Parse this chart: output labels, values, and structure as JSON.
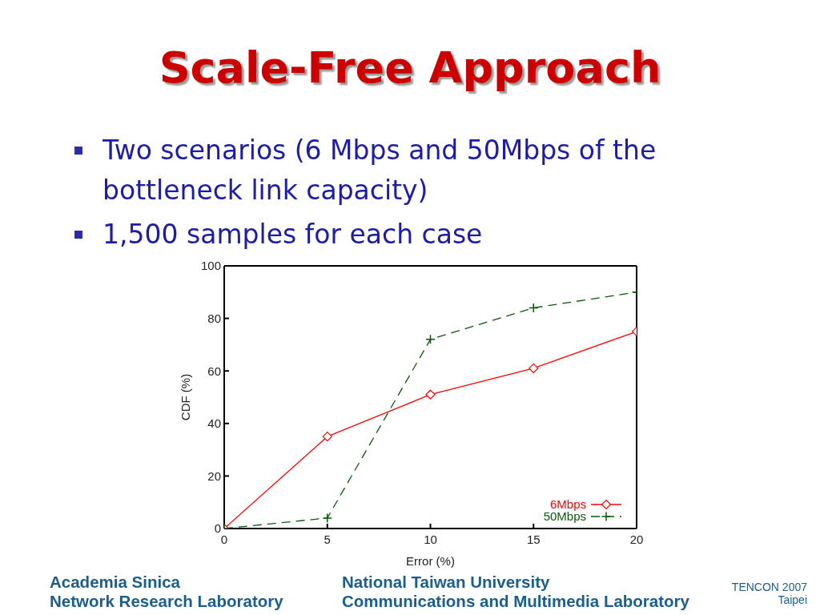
{
  "chart_data": {
    "type": "line",
    "title": "Scale-Free Approach",
    "annotations": [
      "Two scenarios (6 Mbps and 50Mbps of the bottleneck link capacity)",
      "1,500 samples for each case",
      "Academia Sinica",
      "Network Research Laboratory",
      "National Taiwan University",
      "Communications and Multimedia Laboratory",
      "TENCON 2007",
      "Taipei"
    ],
    "xlabel": "Error (%)",
    "ylabel": "CDF (%)",
    "x": [
      0,
      5,
      10,
      15,
      20
    ],
    "series": [
      {
        "name": "6Mbps",
        "color": "#ff0000",
        "values": [
          0,
          35,
          51,
          61,
          75
        ],
        "marker": "diamond",
        "line_style": "solid"
      },
      {
        "name": "50Mbps",
        "color": "#0a5a0a",
        "values": [
          0,
          4,
          72,
          84,
          90
        ],
        "marker": "cross",
        "line_style": "dashed"
      }
    ],
    "xlim": [
      0,
      20
    ],
    "xticks": [
      0,
      5,
      10,
      15,
      20
    ],
    "ylim": [
      0,
      100
    ],
    "yticks": [
      0,
      20,
      40,
      60,
      80,
      100
    ],
    "legend": "bottom right"
  }
}
